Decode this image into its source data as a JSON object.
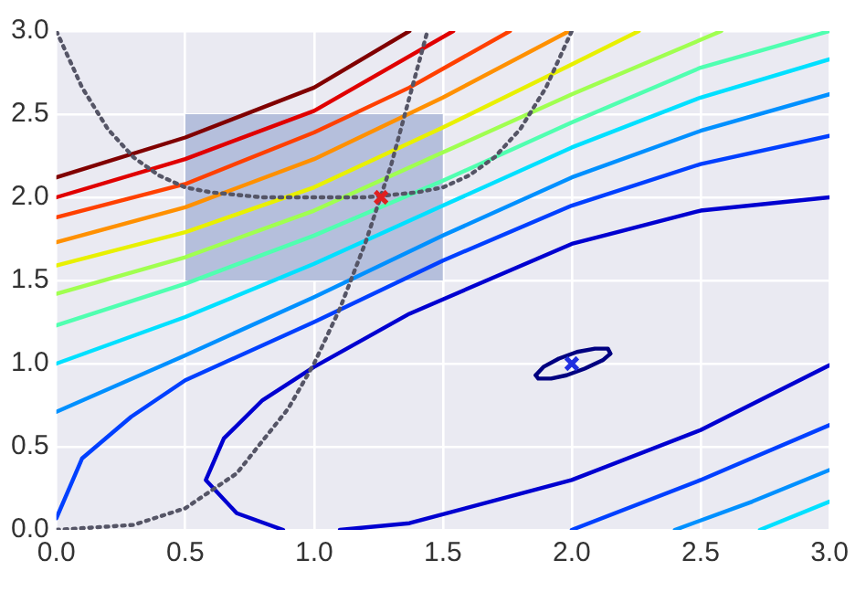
{
  "chart_data": {
    "type": "line",
    "xlim": [
      0,
      3
    ],
    "ylim": [
      0,
      3
    ],
    "xticks": [
      {
        "value": 0,
        "label": "0.0"
      },
      {
        "value": 0.5,
        "label": "0.5"
      },
      {
        "value": 1,
        "label": "1.0"
      },
      {
        "value": 1.5,
        "label": "1.5"
      },
      {
        "value": 2,
        "label": "2.0"
      },
      {
        "value": 2.5,
        "label": "2.5"
      },
      {
        "value": 3,
        "label": "3.0"
      }
    ],
    "yticks": [
      {
        "value": 0,
        "label": "0.0"
      },
      {
        "value": 0.5,
        "label": "0.5"
      },
      {
        "value": 1,
        "label": "1.0"
      },
      {
        "value": 1.5,
        "label": "1.5"
      },
      {
        "value": 2,
        "label": "2.0"
      },
      {
        "value": 2.5,
        "label": "2.5"
      },
      {
        "value": 3,
        "label": "3.0"
      }
    ],
    "grid": true,
    "marker": "none",
    "line_style": "solid",
    "series": [
      {
        "type": "line",
        "color": "#b5bfdc",
        "x": [
          0.5,
          1.5
        ],
        "values": [
          null,
          null
        ],
        "lower": [
          1.5,
          1.5
        ],
        "upper": [
          2.5,
          2.5
        ]
      },
      {
        "type": "line",
        "color": "#800000",
        "x": [
          0,
          0.5,
          1.0,
          1.37
        ],
        "values": [
          2.12,
          2.36,
          2.66,
          3.0
        ]
      },
      {
        "type": "line",
        "color": "#e00000",
        "x": [
          0,
          0.5,
          1.0,
          1.54
        ],
        "values": [
          2.0,
          2.23,
          2.52,
          3.0
        ]
      },
      {
        "type": "line",
        "color": "#ff4000",
        "x": [
          0,
          0.5,
          1.0,
          1.37,
          1.76
        ],
        "values": [
          1.88,
          2.08,
          2.39,
          2.66,
          3.0
        ]
      },
      {
        "type": "line",
        "color": "#ff9000",
        "x": [
          0,
          0.5,
          1.0,
          1.5,
          1.99
        ],
        "values": [
          1.73,
          1.94,
          2.23,
          2.6,
          3.0
        ]
      },
      {
        "type": "line",
        "color": "#e8f000",
        "x": [
          0,
          0.5,
          1.0,
          1.5,
          2.0,
          2.26
        ],
        "values": [
          1.59,
          1.79,
          2.06,
          2.42,
          2.8,
          3.0
        ]
      },
      {
        "type": "line",
        "color": "#a0ff50",
        "x": [
          0,
          0.5,
          1.0,
          1.5,
          2.0,
          2.58
        ],
        "values": [
          1.42,
          1.64,
          1.92,
          2.27,
          2.62,
          3.0
        ]
      },
      {
        "type": "line",
        "color": "#50ffb0",
        "x": [
          0,
          0.5,
          1.0,
          1.5,
          2.0,
          2.5,
          3.0
        ],
        "values": [
          1.23,
          1.48,
          1.77,
          2.1,
          2.45,
          2.78,
          3.0
        ]
      },
      {
        "type": "line",
        "color": "#00e0ff",
        "x": [
          0,
          0.5,
          1.0,
          1.5,
          2.0,
          2.5,
          3.0
        ],
        "values": [
          1.0,
          1.28,
          1.6,
          1.95,
          2.3,
          2.6,
          2.83
        ]
      },
      {
        "type": "line",
        "color": "#00e0ff",
        "x": [
          2.73,
          3.0
        ],
        "values": [
          0.0,
          0.17
        ]
      },
      {
        "type": "line",
        "color": "#0090ff",
        "x": [
          0,
          0.5,
          1.0,
          1.5,
          2.0,
          2.5,
          3.0
        ],
        "values": [
          0.71,
          1.05,
          1.4,
          1.77,
          2.12,
          2.4,
          2.62
        ]
      },
      {
        "type": "line",
        "color": "#0090ff",
        "x": [
          2.4,
          2.7,
          3.0
        ],
        "values": [
          0.0,
          0.17,
          0.36
        ]
      },
      {
        "type": "line",
        "color": "#0040ff",
        "x": [
          0,
          0.1,
          0.29,
          0.5,
          1.0,
          1.5,
          2.0,
          2.5,
          3.0
        ],
        "values": [
          0.07,
          0.43,
          0.68,
          0.9,
          1.25,
          1.62,
          1.95,
          2.2,
          2.37
        ]
      },
      {
        "type": "line",
        "color": "#0040ff",
        "x": [
          2.0,
          2.5,
          3.0
        ],
        "values": [
          0.0,
          0.3,
          0.63
        ]
      },
      {
        "type": "line",
        "color": "#0000d0",
        "x": [
          3.0,
          2.5,
          2.0,
          1.37,
          1.1
        ],
        "values": [
          0.99,
          0.6,
          0.3,
          0.04,
          0.0
        ]
      },
      {
        "type": "line",
        "color": "#0000d0",
        "x": [
          0.88,
          0.7,
          0.58,
          0.65,
          0.8,
          1.0,
          1.37,
          2.0,
          2.5,
          3.0
        ],
        "values": [
          0.0,
          0.1,
          0.3,
          0.55,
          0.78,
          0.98,
          1.3,
          1.72,
          1.92,
          2.0
        ]
      },
      {
        "type": "line",
        "color": "#000080",
        "x": [
          1.86,
          1.89,
          1.95,
          2.02,
          2.09,
          2.14,
          2.15
        ],
        "values": [
          0.93,
          0.98,
          1.03,
          1.07,
          1.09,
          1.09,
          1.06
        ]
      },
      {
        "type": "line",
        "color": "#000080",
        "x": [
          1.86,
          1.87,
          1.92,
          1.98,
          2.05,
          2.12,
          2.15
        ],
        "values": [
          0.93,
          0.91,
          0.91,
          0.93,
          0.97,
          1.02,
          1.06
        ]
      },
      {
        "type": "line",
        "color": "#555566",
        "line_style": "dotted",
        "x": [
          0,
          0.3,
          0.5,
          0.7,
          0.9,
          1.0,
          1.1,
          1.2,
          1.3,
          1.44
        ],
        "values": [
          0,
          0.03,
          0.13,
          0.34,
          0.73,
          1.0,
          1.33,
          1.73,
          2.2,
          3.0
        ]
      },
      {
        "type": "line",
        "color": "#555566",
        "line_style": "dotted",
        "x": [
          0,
          0.1,
          0.2,
          0.3,
          0.4,
          0.5,
          0.6,
          0.8,
          1.0,
          1.2,
          1.4,
          1.5,
          1.6,
          1.7,
          1.8,
          1.9,
          2.0
        ],
        "values": [
          3.0,
          2.66,
          2.41,
          2.24,
          2.13,
          2.06,
          2.03,
          2.0,
          2.0,
          2.0,
          2.03,
          2.06,
          2.13,
          2.24,
          2.41,
          2.66,
          3.0
        ]
      },
      {
        "type": "scatter",
        "color": "#e02020",
        "marker": "cross",
        "x": [
          1.26
        ],
        "values": [
          2.0
        ]
      },
      {
        "type": "scatter",
        "color": "#2030e0",
        "marker": "cross",
        "x": [
          2.0
        ],
        "values": [
          1.0
        ]
      }
    ]
  }
}
